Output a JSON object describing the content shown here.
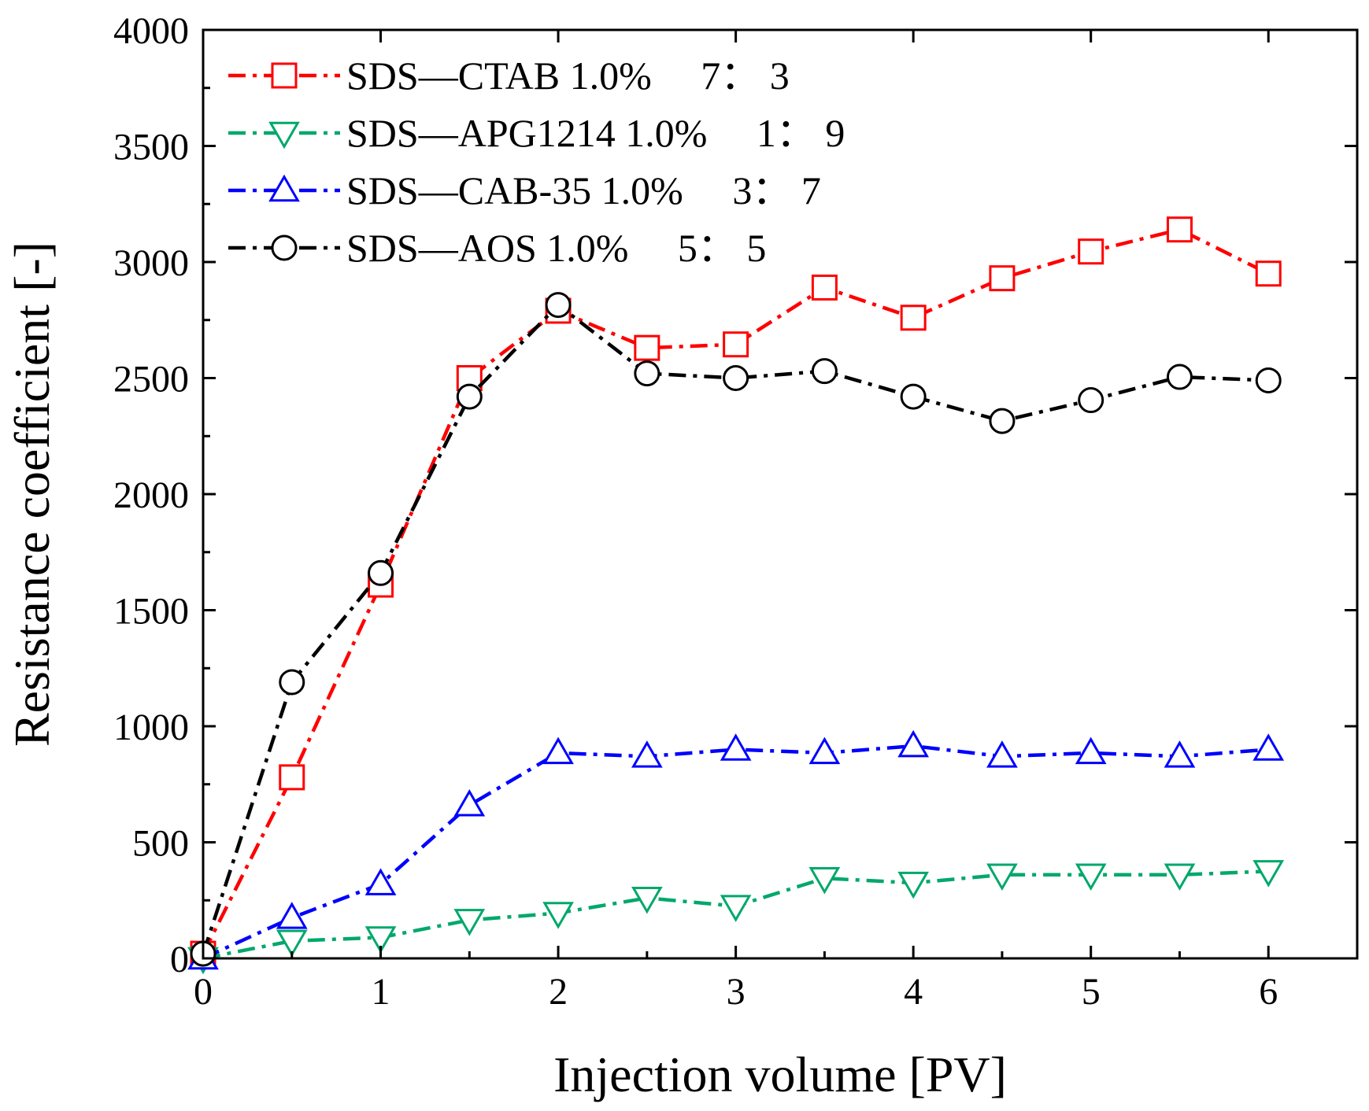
{
  "chart_data": {
    "type": "line",
    "title": "",
    "xlabel": "Injection volume [PV]",
    "ylabel": "Resistance coefficient [-]",
    "xlim": [
      0,
      6.5
    ],
    "ylim": [
      0,
      4000
    ],
    "xticks": [
      0,
      1,
      2,
      3,
      4,
      5,
      6
    ],
    "yticks": [
      0,
      500,
      1000,
      1500,
      2000,
      2500,
      3000,
      3500,
      4000
    ],
    "x": [
      0,
      0.5,
      1,
      1.5,
      2,
      2.5,
      3,
      3.5,
      4,
      4.5,
      5,
      5.5,
      6
    ],
    "legend_position": "top-left",
    "grid": false,
    "series": [
      {
        "name": "SDS—CTAB 1.0%　 7： 3",
        "color": "#ff0000",
        "marker": "square",
        "values": [
          20,
          780,
          1610,
          2500,
          2790,
          2630,
          2645,
          2890,
          2760,
          2930,
          3045,
          3140,
          2950
        ]
      },
      {
        "name": "SDS—APG1214 1.0%　 1： 9",
        "color": "#00a86b",
        "marker": "triangle-down",
        "values": [
          0,
          75,
          90,
          165,
          195,
          260,
          225,
          345,
          325,
          360,
          360,
          360,
          375
        ]
      },
      {
        "name": "SDS—CAB-35 1.0%　 3： 7",
        "color": "#0000ff",
        "marker": "triangle-up",
        "values": [
          0,
          175,
          320,
          660,
          885,
          870,
          900,
          885,
          915,
          870,
          885,
          870,
          900
        ]
      },
      {
        "name": "SDS—AOS 1.0%　 5： 5",
        "color": "#000000",
        "marker": "circle",
        "values": [
          20,
          1190,
          1660,
          2420,
          2815,
          2520,
          2500,
          2530,
          2420,
          2315,
          2405,
          2505,
          2490
        ]
      }
    ]
  }
}
